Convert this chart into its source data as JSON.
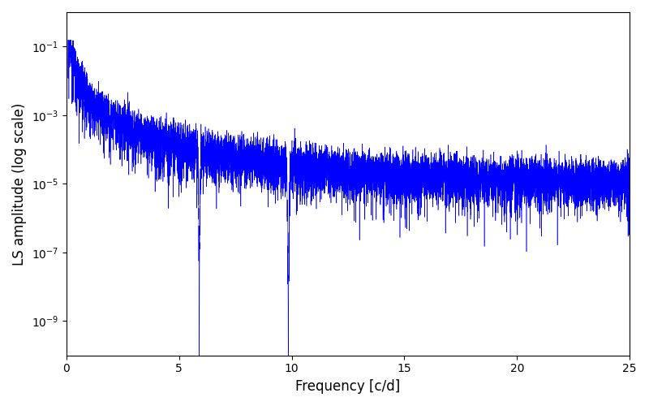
{
  "title": "",
  "xlabel": "Frequency [c/d]",
  "ylabel": "LS amplitude (log scale)",
  "xlim": [
    0,
    25
  ],
  "ylim": [
    1e-10,
    1
  ],
  "line_color": "#0000ff",
  "background_color": "#ffffff",
  "figsize": [
    8.0,
    5.0
  ],
  "dpi": 100,
  "freq_max": 25.0,
  "n_points": 10000,
  "seed": 12345
}
